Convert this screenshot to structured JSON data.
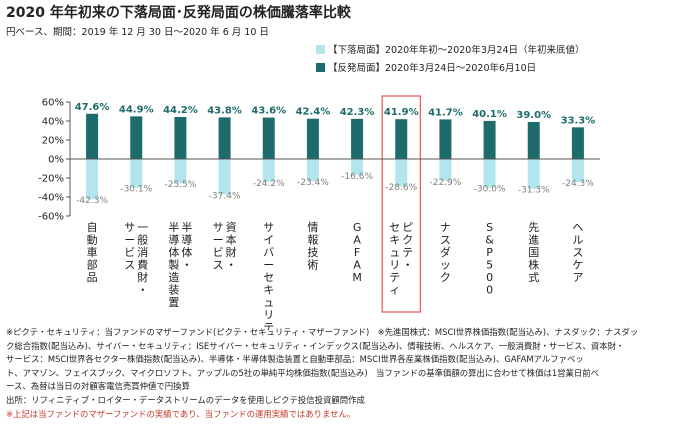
{
  "header": {
    "title": "2020 年年初来の下落局面･反発局面の株価騰落率比較",
    "subtitle": "円ベース、期間：2019 年 12 月 30 日～2020 年 6 月 10 日"
  },
  "legend": [
    {
      "label": "【下落局面】2020年年初～2020年3月24日（年初来底値）",
      "color": "#b3e6ec"
    },
    {
      "label": "【反発局面】2020年3月24日～2020年6月10日",
      "color": "#1e6b6b"
    }
  ],
  "chart_data": {
    "type": "bar",
    "categories": [
      "自動車部品",
      "一般消費財・サービス",
      "半導体・半導体製造装置",
      "資本財・サービス",
      "サイバーセキュリティ",
      "情報技術",
      "GAFAM",
      "ピクテ・セキュリティ",
      "ナスダック",
      "S&P500",
      "先進国株式",
      "ヘルスケア"
    ],
    "series": [
      {
        "name": "【下落局面】2020年年初～2020年3月24日（年初来底値）",
        "color": "#b3e6ec",
        "values": [
          -42.3,
          -30.1,
          -25.5,
          -37.4,
          -24.2,
          -23.4,
          -16.6,
          -28.6,
          -22.9,
          -30.0,
          -31.3,
          -24.3
        ],
        "labels": [
          "-42.3%",
          "-30.1%",
          "-25.5%",
          "-37.4%",
          "-24.2%",
          "-23.4%",
          "-16.6%",
          "-28.6%",
          "-22.9%",
          "-30.0%",
          "-31.3%",
          "-24.3%"
        ]
      },
      {
        "name": "【反発局面】2020年3月24日～2020年6月10日",
        "color": "#1e6b6b",
        "values": [
          47.6,
          44.9,
          44.2,
          43.8,
          43.6,
          42.4,
          42.3,
          41.9,
          41.7,
          40.1,
          39.0,
          33.3
        ],
        "labels": [
          "47.6%",
          "44.9%",
          "44.2%",
          "43.8%",
          "43.6%",
          "42.4%",
          "42.3%",
          "41.9%",
          "41.7%",
          "40.1%",
          "39.0%",
          "33.3%"
        ]
      }
    ],
    "ylim": [
      -60,
      60
    ],
    "yticks": [
      60,
      40,
      20,
      0,
      -20,
      -40,
      -60
    ],
    "ytick_labels": [
      "60%",
      "40%",
      "20%",
      "0%",
      "-20%",
      "-40%",
      "-60%"
    ],
    "highlight_category": "ピクテ・セキュリティ",
    "highlight_color": "#e8534a",
    "positive_label_color": "#1e6b6b",
    "negative_label_color": "#7f7f7f",
    "grid": false
  },
  "notes": {
    "lines": [
      "※ピクテ・セキュリティ：当ファンドのマザーファンド(ピクテ・セキュリティ・マザーファンド)　※先進国株式：MSCI世界株価指数(配当込み)、ナスダック：ナスダッ",
      "ク総合指数(配当込み)、サイバー・セキュリティ：ISEサイバー・セキュリティ・インデックス(配当込み)、情報技術、ヘルスケア、一般消費財・サービス、資本財・",
      "サービス：MSCI世界各セクター株価指数(配当込み)、半導体・半導体製造装置と自動車部品：MSCI世界各産業株価指数(配当込み)、GAFAMアルファベッ",
      "ト、アマゾン、フェイスブック、マイクロソフト、アップルの5社の単純平均株価指数(配当込み)　当ファンドの基準価額の算出に合わせて株価は1営業日前べ",
      "ース、為替は当日の対顧客電信売買仲値で円換算",
      "出所：リフィニティブ・ロイター・データストリームのデータを使用しピクテ投信投資顧問作成"
    ],
    "disclaimer": "※上記は当ファンドのマザーファンドの実績であり、当ファンドの運用実績ではありません。"
  }
}
